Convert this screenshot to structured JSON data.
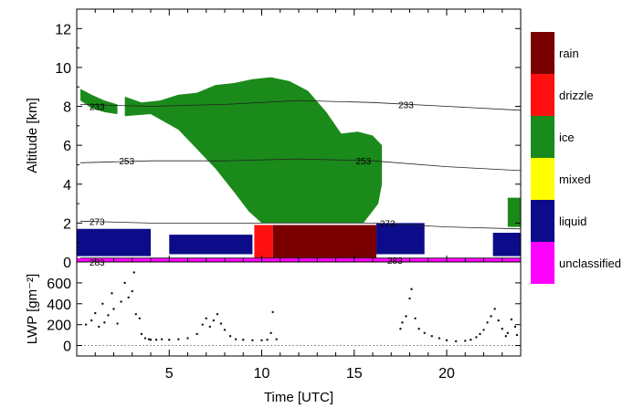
{
  "chart_data": [
    {
      "type": "heatmap",
      "title": "",
      "xlabel": "Time [UTC]",
      "ylabel": "Altitude [km]",
      "xlim": [
        0,
        24
      ],
      "ylim": [
        0,
        13
      ],
      "yticks": [
        0,
        2,
        4,
        6,
        8,
        10,
        12
      ],
      "grid": false,
      "legend": {
        "placement": "right",
        "entries": [
          {
            "label": "rain",
            "color": "#7a0000"
          },
          {
            "label": "drizzle",
            "color": "#ff1010"
          },
          {
            "label": "ice",
            "color": "#1a8a1a"
          },
          {
            "label": "mixed",
            "color": "#ffff00"
          },
          {
            "label": "liquid",
            "color": "#0c0c8a"
          },
          {
            "label": "unclassified",
            "color": "#ff00ff"
          }
        ]
      },
      "regions": [
        {
          "class": "ice",
          "t_start": 2.6,
          "t_end": 16.5,
          "top": [
            [
              2.6,
              8.5
            ],
            [
              3.5,
              8.2
            ],
            [
              4.5,
              8.3
            ],
            [
              5.5,
              8.6
            ],
            [
              6.5,
              8.7
            ],
            [
              7.5,
              9.1
            ],
            [
              8.5,
              9.2
            ],
            [
              9.5,
              9.4
            ],
            [
              10.5,
              9.5
            ],
            [
              11.5,
              9.3
            ],
            [
              12.5,
              8.8
            ],
            [
              13.5,
              7.7
            ],
            [
              14.3,
              6.6
            ],
            [
              15.2,
              6.7
            ],
            [
              16.0,
              6.5
            ],
            [
              16.5,
              6.0
            ]
          ],
          "base": [
            [
              2.6,
              7.5
            ],
            [
              4.0,
              7.6
            ],
            [
              5.5,
              6.8
            ],
            [
              6.5,
              5.8
            ],
            [
              7.5,
              4.8
            ],
            [
              8.5,
              3.6
            ],
            [
              9.3,
              2.6
            ],
            [
              10.0,
              2.0
            ],
            [
              15.5,
              2.0
            ],
            [
              16.3,
              3.0
            ],
            [
              16.5,
              4.0
            ]
          ]
        },
        {
          "class": "ice",
          "t_start": 0.2,
          "t_end": 2.2,
          "top": [
            [
              0.2,
              8.9
            ],
            [
              0.8,
              8.6
            ],
            [
              1.5,
              8.3
            ],
            [
              2.2,
              8.1
            ]
          ],
          "base": [
            [
              0.2,
              8.3
            ],
            [
              0.8,
              7.9
            ],
            [
              1.5,
              7.7
            ],
            [
              2.2,
              7.6
            ]
          ]
        },
        {
          "class": "rain",
          "t_start": 10.6,
          "t_end": 16.2,
          "top": [
            [
              10.6,
              1.9
            ],
            [
              16.2,
              1.9
            ]
          ],
          "base": [
            [
              10.6,
              0.0
            ],
            [
              16.2,
              0.0
            ]
          ]
        },
        {
          "class": "drizzle",
          "t_start": 9.6,
          "t_end": 10.6,
          "top": [
            [
              9.6,
              1.9
            ],
            [
              10.6,
              1.9
            ]
          ],
          "base": [
            [
              9.6,
              0.0
            ],
            [
              10.6,
              0.0
            ]
          ]
        },
        {
          "class": "liquid",
          "t_start": 0.0,
          "t_end": 4.0,
          "top": [
            [
              0.0,
              1.7
            ],
            [
              4.0,
              1.7
            ]
          ],
          "base": [
            [
              0.0,
              0.3
            ],
            [
              4.0,
              0.3
            ]
          ]
        },
        {
          "class": "liquid",
          "t_start": 5.0,
          "t_end": 9.5,
          "top": [
            [
              5.0,
              1.4
            ],
            [
              9.5,
              1.4
            ]
          ],
          "base": [
            [
              5.0,
              0.4
            ],
            [
              9.5,
              0.4
            ]
          ]
        },
        {
          "class": "liquid",
          "t_start": 16.2,
          "t_end": 18.8,
          "top": [
            [
              16.2,
              2.0
            ],
            [
              18.8,
              2.0
            ]
          ],
          "base": [
            [
              16.2,
              0.4
            ],
            [
              18.8,
              0.4
            ]
          ]
        },
        {
          "class": "liquid",
          "t_start": 22.5,
          "t_end": 24.0,
          "top": [
            [
              22.5,
              1.5
            ],
            [
              24.0,
              1.5
            ]
          ],
          "base": [
            [
              22.5,
              0.3
            ],
            [
              24.0,
              0.3
            ]
          ]
        },
        {
          "class": "ice",
          "t_start": 23.3,
          "t_end": 24.0,
          "top": [
            [
              23.3,
              3.3
            ],
            [
              24.0,
              3.3
            ]
          ],
          "base": [
            [
              23.3,
              1.8
            ],
            [
              24.0,
              1.8
            ]
          ]
        },
        {
          "class": "unclassified",
          "t_start": 0.0,
          "t_end": 24.0,
          "top": [
            [
              0.0,
              0.2
            ],
            [
              24.0,
              0.2
            ]
          ],
          "base": [
            [
              0.0,
              0.0
            ],
            [
              24.0,
              0.0
            ]
          ]
        }
      ],
      "isotherms": [
        {
          "label": "233",
          "points": [
            [
              0.2,
              8.1
            ],
            [
              4,
              8.0
            ],
            [
              8,
              8.1
            ],
            [
              12,
              8.3
            ],
            [
              16,
              8.2
            ],
            [
              20,
              8.0
            ],
            [
              24,
              7.8
            ]
          ]
        },
        {
          "label": "253",
          "points": [
            [
              0.2,
              5.1
            ],
            [
              4,
              5.2
            ],
            [
              8,
              5.2
            ],
            [
              12,
              5.3
            ],
            [
              16,
              5.2
            ],
            [
              20,
              4.9
            ],
            [
              24,
              4.7
            ]
          ]
        },
        {
          "label": "273",
          "points": [
            [
              0.2,
              2.1
            ],
            [
              4,
              2.0
            ],
            [
              8,
              2.0
            ],
            [
              12,
              2.0
            ],
            [
              16,
              2.0
            ],
            [
              20,
              1.8
            ],
            [
              24,
              1.7
            ]
          ]
        },
        {
          "label": "283",
          "points": [
            [
              0.2,
              0.2
            ],
            [
              24,
              0.2
            ]
          ]
        }
      ],
      "isotherm_labels": [
        {
          "text": "233",
          "x": 1.1,
          "y": 8.0
        },
        {
          "text": "233",
          "x": 17.8,
          "y": 8.1
        },
        {
          "text": "253",
          "x": 2.7,
          "y": 5.2
        },
        {
          "text": "253",
          "x": 15.5,
          "y": 5.2
        },
        {
          "text": "273",
          "x": 1.1,
          "y": 2.1
        },
        {
          "text": "273",
          "x": 16.8,
          "y": 2.0
        },
        {
          "text": "283",
          "x": 1.1,
          "y": 0.0
        },
        {
          "text": "283",
          "x": 17.2,
          "y": 0.1
        }
      ]
    },
    {
      "type": "scatter",
      "xlabel": "Time [UTC]",
      "ylabel": "LWP [gm⁻²]",
      "xlim": [
        0,
        24
      ],
      "ylim": [
        -100,
        800
      ],
      "xticks": [
        5,
        10,
        15,
        20
      ],
      "yticks": [
        0,
        200,
        400,
        600
      ],
      "reference_lines": [
        0
      ],
      "series": [
        {
          "x": [
            0.5,
            0.8,
            1.0,
            1.2,
            1.4,
            1.5,
            1.7,
            1.9,
            2.0,
            2.2,
            2.4,
            2.6,
            2.8,
            3.0,
            3.1,
            3.2,
            3.4,
            3.5,
            3.7,
            3.9,
            4.0,
            4.3,
            4.6,
            5.0,
            5.5,
            6.0,
            6.5,
            6.8,
            7.0,
            7.2,
            7.4,
            7.6,
            7.8,
            8.0,
            8.3,
            8.6,
            9.0,
            9.5,
            10.0,
            10.3,
            10.5,
            10.6,
            10.8,
            17.5,
            17.6,
            17.8,
            18.0,
            18.1,
            18.3,
            18.5,
            18.8,
            19.2,
            19.6,
            20.0,
            20.5,
            21.0,
            21.3,
            21.6,
            21.8,
            22.0,
            22.2,
            22.4,
            22.6,
            22.8,
            23.0,
            23.2,
            23.3,
            23.5,
            23.7,
            23.8
          ],
          "y": [
            200,
            240,
            310,
            180,
            400,
            220,
            290,
            500,
            350,
            210,
            420,
            600,
            460,
            520,
            700,
            300,
            260,
            110,
            70,
            60,
            55,
            55,
            60,
            55,
            60,
            70,
            110,
            200,
            260,
            180,
            240,
            300,
            210,
            150,
            90,
            60,
            55,
            50,
            50,
            55,
            120,
            320,
            60,
            160,
            220,
            280,
            450,
            540,
            260,
            160,
            120,
            90,
            70,
            50,
            40,
            45,
            55,
            80,
            110,
            150,
            220,
            280,
            350,
            240,
            160,
            90,
            120,
            250,
            180,
            100
          ]
        }
      ]
    }
  ]
}
